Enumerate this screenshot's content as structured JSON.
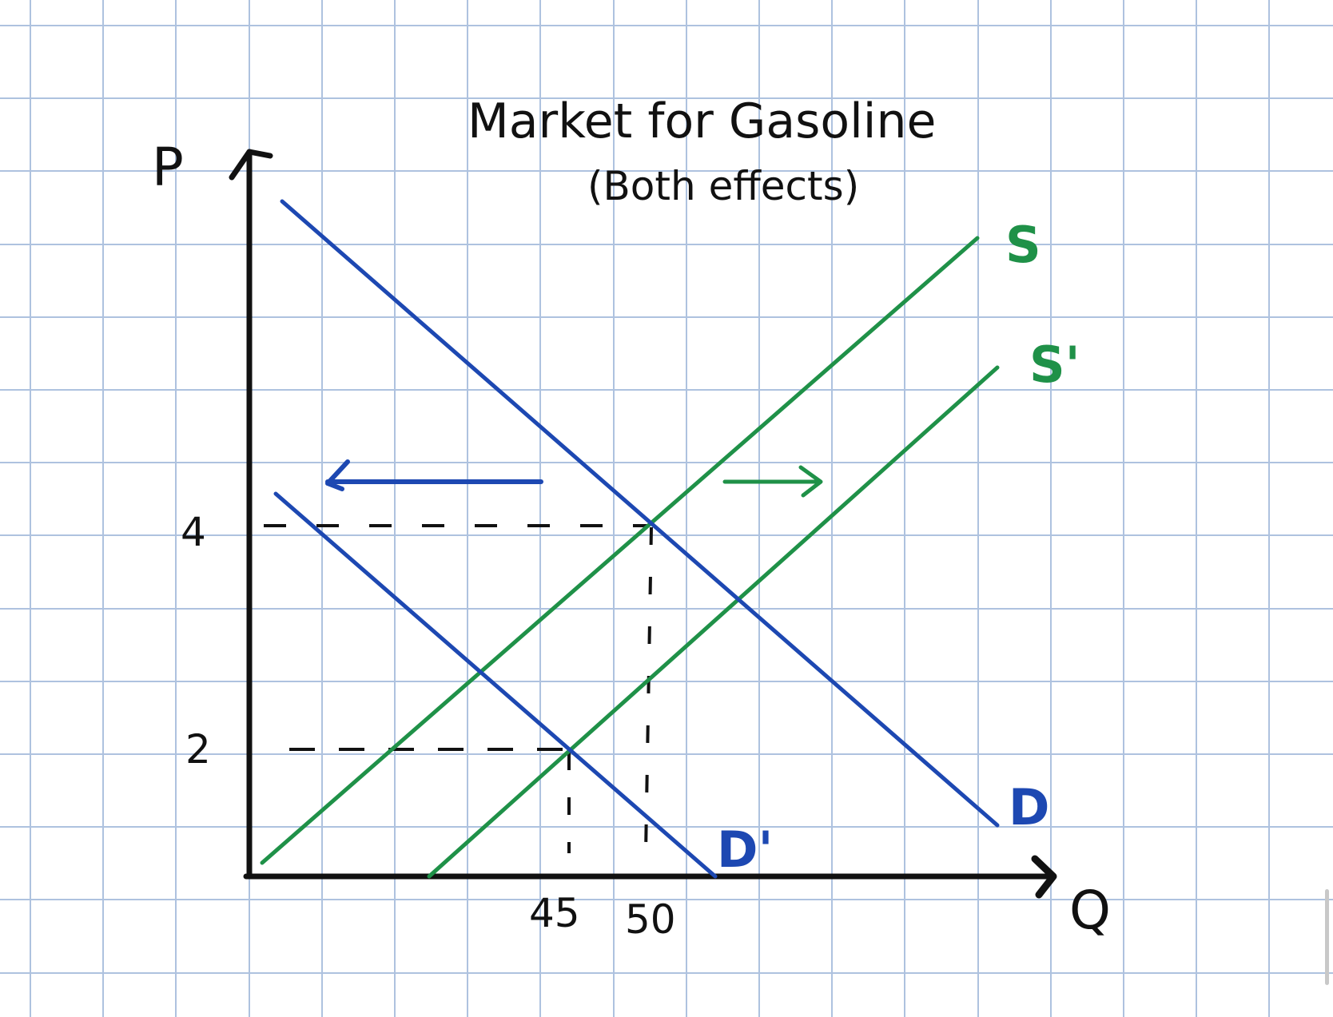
{
  "title": "Market for Gasoline",
  "subtitle": "(Both effects)",
  "axes": {
    "y_label": "P",
    "x_label": "Q"
  },
  "ticks": {
    "price": [
      "4",
      "2"
    ],
    "quantity": [
      "45",
      "50"
    ]
  },
  "curves": {
    "supply": "S",
    "supply_shifted": "S'",
    "demand": "D",
    "demand_shifted": "D'"
  },
  "colors": {
    "grid": "#aec2df",
    "axis": "#111111",
    "supply": "#1f9148",
    "demand": "#1d48b2"
  },
  "chart_data": {
    "type": "line",
    "title": "Market for Gasoline",
    "subtitle": "(Both effects)",
    "xlabel": "Q",
    "ylabel": "P",
    "x_ticks": [
      45,
      50
    ],
    "y_ticks": [
      2,
      4
    ],
    "series": [
      {
        "name": "S",
        "role": "supply",
        "points": [
          [
            1,
            0.2
          ],
          [
            50,
            4
          ]
        ]
      },
      {
        "name": "S'",
        "role": "supply",
        "points": [
          [
            12,
            0
          ],
          [
            45,
            2
          ]
        ]
      },
      {
        "name": "D",
        "role": "demand",
        "points": [
          [
            50,
            4
          ],
          [
            56,
            3.5
          ]
        ]
      },
      {
        "name": "D'",
        "role": "demand",
        "points": [
          [
            45,
            2
          ],
          [
            56,
            0
          ]
        ]
      }
    ],
    "equilibria": [
      {
        "q": 50,
        "p": 4,
        "curves": [
          "S",
          "D"
        ]
      },
      {
        "q": 45,
        "p": 2,
        "curves": [
          "S'",
          "D'"
        ]
      }
    ],
    "shifts": [
      {
        "curve": "D",
        "direction": "left"
      },
      {
        "curve": "S",
        "direction": "right"
      }
    ],
    "grid": true
  }
}
